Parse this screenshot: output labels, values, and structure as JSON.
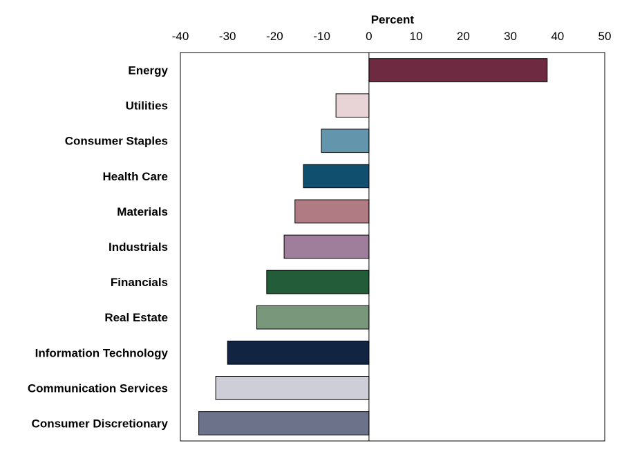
{
  "chart_data": {
    "type": "bar",
    "orientation": "horizontal",
    "title": "",
    "xlabel": "Percent",
    "ylabel": "",
    "xlim": [
      -40,
      50
    ],
    "xticks": [
      -40,
      -30,
      -20,
      -10,
      0,
      10,
      20,
      30,
      40,
      50
    ],
    "x_axis_position": "top",
    "grid": false,
    "categories": [
      "Energy",
      "Utilities",
      "Consumer Staples",
      "Health Care",
      "Materials",
      "Industrials",
      "Financials",
      "Real Estate",
      "Information Technology",
      "Communication Services",
      "Consumer Discretionary"
    ],
    "values": [
      37.8,
      -7,
      -10.1,
      -13.9,
      -15.7,
      -18,
      -21.7,
      -23.8,
      -30,
      -32.5,
      -36.1
    ],
    "colors": [
      "#6e2a40",
      "#e8d3d6",
      "#6396ad",
      "#10506e",
      "#b07b82",
      "#9e7e9b",
      "#235c38",
      "#79977a",
      "#112442",
      "#cdced8",
      "#6b7289"
    ]
  }
}
